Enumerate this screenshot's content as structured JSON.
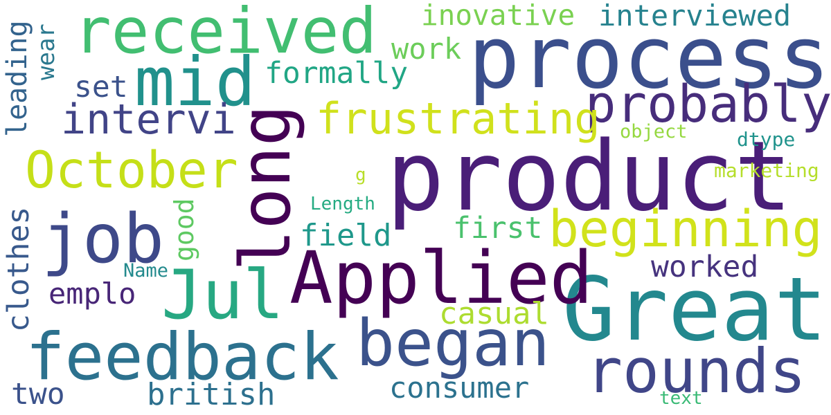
{
  "words": [
    {
      "text": "product",
      "color": "#4a1e78"
    },
    {
      "text": "process",
      "color": "#3b4f8c"
    },
    {
      "text": "Great",
      "color": "#23888e"
    },
    {
      "text": "Applied",
      "color": "#440154"
    },
    {
      "text": "received",
      "color": "#42be71"
    },
    {
      "text": "feedback",
      "color": "#2c718e"
    },
    {
      "text": "rounds",
      "color": "#404688"
    },
    {
      "text": "began",
      "color": "#3b528b"
    },
    {
      "text": "job",
      "color": "#3e4989"
    },
    {
      "text": "mid",
      "color": "#21918c"
    },
    {
      "text": "Jul",
      "color": "#27a882"
    },
    {
      "text": "long",
      "color": "#440154"
    },
    {
      "text": "October",
      "color": "#c5df18"
    },
    {
      "text": "beginning",
      "color": "#d1e21b"
    },
    {
      "text": "probably",
      "color": "#472d7b"
    },
    {
      "text": "frustrating",
      "color": "#d0e11c"
    },
    {
      "text": "intervi",
      "color": "#414487"
    },
    {
      "text": "interviewed",
      "color": "#26828e"
    },
    {
      "text": "inovative",
      "color": "#7ad151"
    },
    {
      "text": "formally",
      "color": "#21a685"
    },
    {
      "text": "work",
      "color": "#6ccd5a"
    },
    {
      "text": "set",
      "color": "#3b528b"
    },
    {
      "text": "wear",
      "color": "#2a788e"
    },
    {
      "text": "leading",
      "color": "#33638d"
    },
    {
      "text": "clothes",
      "color": "#38598c"
    },
    {
      "text": "good",
      "color": "#5ec962"
    },
    {
      "text": "field",
      "color": "#1f988b"
    },
    {
      "text": "first",
      "color": "#4ac16d"
    },
    {
      "text": "worked",
      "color": "#46337e"
    },
    {
      "text": "casual",
      "color": "#addc30"
    },
    {
      "text": "emplo",
      "color": "#482677"
    },
    {
      "text": "Name",
      "color": "#238a8d"
    },
    {
      "text": "british",
      "color": "#2d708e"
    },
    {
      "text": "two",
      "color": "#3b528b"
    },
    {
      "text": "consumer",
      "color": "#2c728e"
    },
    {
      "text": "text",
      "color": "#3aba76"
    },
    {
      "text": "object",
      "color": "#95d840"
    },
    {
      "text": "dtype",
      "color": "#20938c"
    },
    {
      "text": "marketing",
      "color": "#b5de2b"
    },
    {
      "text": "Length",
      "color": "#25ab82"
    },
    {
      "text": "g",
      "color": "#b8de29"
    }
  ]
}
